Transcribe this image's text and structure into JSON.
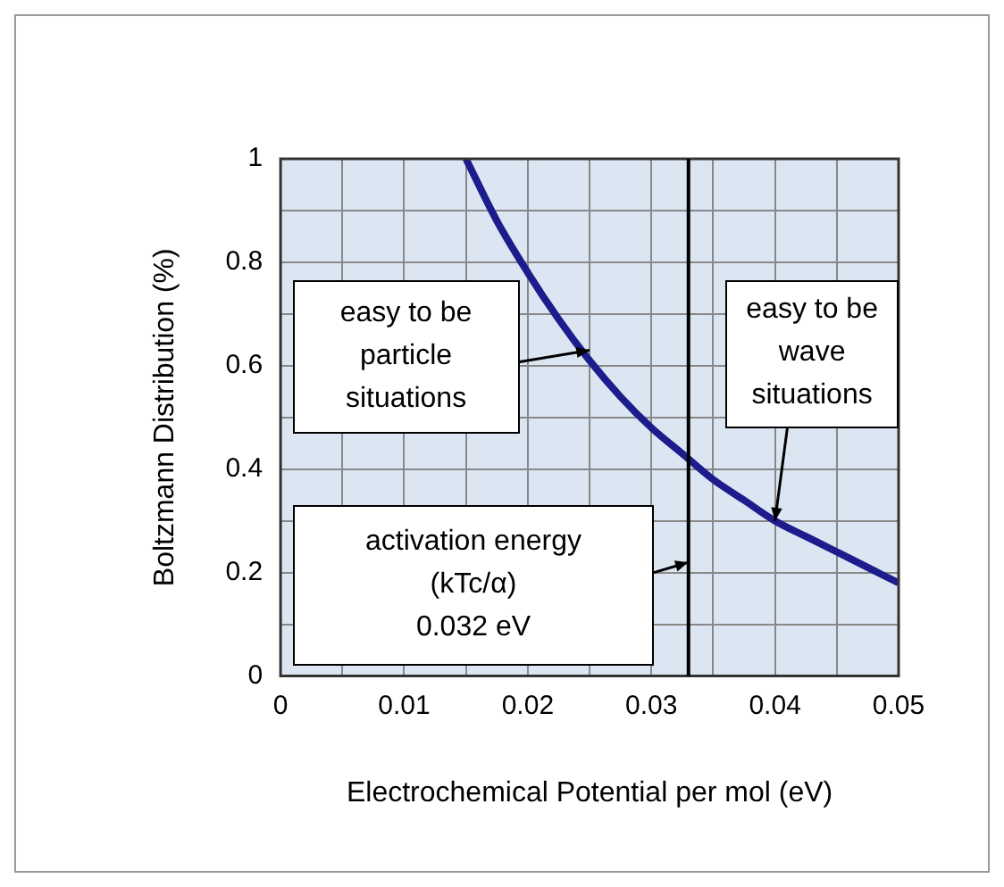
{
  "chart_data": {
    "type": "line",
    "xlabel": "Electrochemical Potential per mol (eV)",
    "ylabel": "Boltzmann Distribution (%)",
    "x": [
      0.015,
      0.0175,
      0.02,
      0.0225,
      0.025,
      0.0275,
      0.03,
      0.0325,
      0.035,
      0.0375,
      0.04,
      0.0425,
      0.045,
      0.0475,
      0.05
    ],
    "series": [
      {
        "color": "#1c1c8c",
        "values": [
          1,
          0.88,
          0.78,
          0.69,
          0.61,
          0.54,
          0.48,
          0.43,
          0.38,
          0.34,
          0.3,
          0.27,
          0.24,
          0.21,
          0.18
        ]
      }
    ],
    "xlim": [
      0,
      0.05
    ],
    "ylim": [
      0,
      1
    ],
    "xticks": [
      0,
      {
        "value": 0.005,
        "label": null
      },
      0.01,
      {
        "value": 0.015,
        "label": null
      },
      0.02,
      {
        "value": 0.025,
        "label": null
      },
      0.03,
      {
        "value": 0.035,
        "label": null
      },
      0.04,
      {
        "value": 0.045,
        "label": null
      },
      0.05
    ],
    "yticks": [
      0,
      {
        "value": 0.1,
        "label": null
      },
      0.2,
      {
        "value": 0.3,
        "label": null
      },
      0.4,
      {
        "value": 0.5,
        "label": null
      },
      0.6,
      {
        "value": 0.7,
        "label": null
      },
      0.8,
      {
        "value": 0.9,
        "label": null
      },
      1
    ],
    "grid": true,
    "legend": false,
    "marker": "none",
    "line_style": "solid",
    "ref_lines": [
      {
        "axis": "x",
        "value": 0.033,
        "color": "#000000"
      }
    ],
    "annotations": [
      {
        "text": "easy to be\nparticle\nsituations",
        "x": 0.025,
        "y": 0.63
      },
      {
        "text": "easy to be\nwave\nsituations",
        "x": 0.04,
        "y": 0.3
      },
      "activation energy\n(kTc/α)\n0.032 eV"
    ]
  }
}
